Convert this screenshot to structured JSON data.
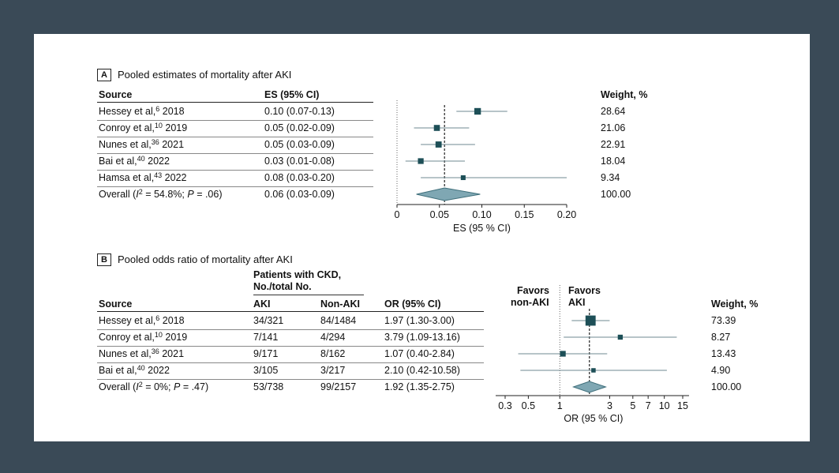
{
  "chart_data": [
    {
      "type": "forest",
      "panel_letter": "A",
      "title": "Pooled estimates of mortality after AKI",
      "columns": {
        "source": "Source",
        "estimate": "ES (95% CI)",
        "weight": "Weight, %"
      },
      "rows": [
        {
          "author": "Hessey et al,",
          "ref": "6",
          "year": "2018",
          "estimate_label": "0.10 (0.07-0.13)",
          "es": 0.095,
          "lo": 0.07,
          "hi": 0.13,
          "weight": "28.64"
        },
        {
          "author": "Conroy et al,",
          "ref": "10",
          "year": "2019",
          "estimate_label": "0.05 (0.02-0.09)",
          "es": 0.047,
          "lo": 0.02,
          "hi": 0.085,
          "weight": "21.06"
        },
        {
          "author": "Nunes et al,",
          "ref": "36",
          "year": "2021",
          "estimate_label": "0.05 (0.03-0.09)",
          "es": 0.049,
          "lo": 0.028,
          "hi": 0.092,
          "weight": "22.91"
        },
        {
          "author": "Bai et al,",
          "ref": "40",
          "year": "2022",
          "estimate_label": "0.03 (0.01-0.08)",
          "es": 0.028,
          "lo": 0.01,
          "hi": 0.08,
          "weight": "18.04"
        },
        {
          "author": "Hamsa et al,",
          "ref": "43",
          "year": "2022",
          "estimate_label": "0.08 (0.03-0.20)",
          "es": 0.078,
          "lo": 0.028,
          "hi": 0.2,
          "weight": "9.34"
        }
      ],
      "overall": {
        "label_pre": "Overall (",
        "i2_symbol": "I",
        "i2_sup": "2",
        "label_post": " = 54.8%; ",
        "p_symbol": "P",
        "p_text": " = .06)",
        "estimate_label": "0.06 (0.03-0.09)",
        "es": 0.056,
        "lo": 0.035,
        "hi": 0.085,
        "weight": "100.00"
      },
      "x_ticks": [
        "0",
        "0.05",
        "0.10",
        "0.15",
        "0.20"
      ],
      "x_tick_values": [
        0,
        0.05,
        0.1,
        0.15,
        0.2
      ],
      "xlim": [
        0,
        0.2
      ],
      "scale": "linear",
      "xlabel": "ES (95 % CI)",
      "null_line": 0
    },
    {
      "type": "forest",
      "panel_letter": "B",
      "title": "Pooled odds ratio of mortality after AKI",
      "group_header_1": "Patients with CKD,",
      "group_header_2": "No./total No.",
      "columns": {
        "source": "Source",
        "aki": "AKI",
        "non_aki": "Non-AKI",
        "estimate": "OR (95% CI)",
        "weight": "Weight, %"
      },
      "favors_left_1": "Favors",
      "favors_left_2": "non-AKI",
      "favors_right_1": "Favors",
      "favors_right_2": "AKI",
      "rows": [
        {
          "author": "Hessey et al,",
          "ref": "6",
          "year": "2018",
          "aki": "34/321",
          "non_aki": "84/1484",
          "estimate_label": "1.97 (1.30-3.00)",
          "or": 1.97,
          "lo": 1.3,
          "hi": 3.0,
          "weight": "73.39"
        },
        {
          "author": "Conroy et al,",
          "ref": "10",
          "year": "2019",
          "aki": "7/141",
          "non_aki": "4/294",
          "estimate_label": "3.79 (1.09-13.16)",
          "or": 3.79,
          "lo": 1.09,
          "hi": 13.16,
          "weight": "8.27"
        },
        {
          "author": "Nunes et al,",
          "ref": "36",
          "year": "2021",
          "aki": "9/171",
          "non_aki": "8/162",
          "estimate_label": "1.07 (0.40-2.84)",
          "or": 1.07,
          "lo": 0.4,
          "hi": 2.84,
          "weight": "13.43"
        },
        {
          "author": "Bai et al,",
          "ref": "40",
          "year": "2022",
          "aki": "3/105",
          "non_aki": "3/217",
          "estimate_label": "2.10 (0.42-10.58)",
          "or": 2.1,
          "lo": 0.42,
          "hi": 10.58,
          "weight": "4.90"
        }
      ],
      "overall": {
        "label_pre": "Overall (",
        "i2_symbol": "I",
        "i2_sup": "2",
        "label_post": " = 0%; ",
        "p_symbol": "P",
        "p_text": " = .47)",
        "aki": "53/738",
        "non_aki": "99/2157",
        "estimate_label": "1.92 (1.35-2.75)",
        "or": 1.92,
        "lo": 1.35,
        "hi": 2.75,
        "weight": "100.00"
      },
      "x_ticks": [
        "0.3",
        "0.5",
        "1",
        "3",
        "5",
        "7",
        "10",
        "15"
      ],
      "x_tick_values": [
        0.3,
        0.5,
        1,
        3,
        5,
        7,
        10,
        15
      ],
      "scale": "log",
      "xlabel": "OR (95 % CI)",
      "null_line": 1
    }
  ],
  "colors": {
    "marker": "#1d4f57",
    "diamond": "#7fa7b3",
    "diamond_edge": "#3f6f7b",
    "ci_line": "#6f8a91",
    "frame": "#3a4a57"
  }
}
